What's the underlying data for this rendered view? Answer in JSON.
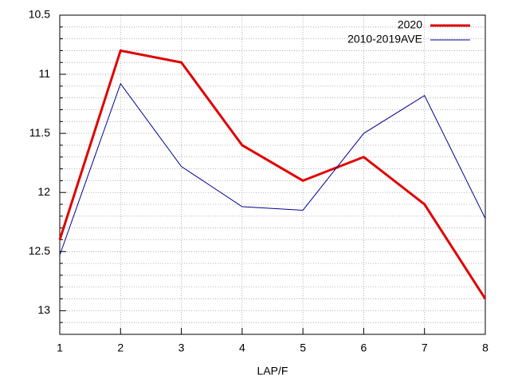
{
  "chart_data": {
    "type": "line",
    "x": [
      1,
      2,
      3,
      4,
      5,
      6,
      7,
      8
    ],
    "xlabel": "LAP/F",
    "xlim": [
      1,
      8
    ],
    "xticks": [
      1,
      2,
      3,
      4,
      5,
      6,
      7,
      8
    ],
    "ylim": [
      10.5,
      13.2
    ],
    "yticks": [
      10.5,
      11,
      11.5,
      12,
      12.5,
      13
    ],
    "yminorticks": [
      10.6,
      10.7,
      10.8,
      10.9,
      11.1,
      11.2,
      11.3,
      11.4,
      11.6,
      11.7,
      11.8,
      11.9,
      12.1,
      12.2,
      12.3,
      12.4,
      12.6,
      12.7,
      12.8,
      12.9,
      13.1
    ],
    "y_inverted": true,
    "grid": true,
    "legend": "top-right",
    "series": [
      {
        "name": "2020",
        "color": "#e00000",
        "width": 3,
        "values": [
          12.4,
          10.8,
          10.9,
          11.6,
          11.9,
          11.7,
          12.1,
          12.9
        ]
      },
      {
        "name": "2010-2019AVE",
        "color": "#000090",
        "width": 1,
        "values": [
          12.53,
          11.08,
          11.78,
          12.12,
          12.15,
          11.5,
          11.18,
          12.22
        ]
      }
    ]
  }
}
